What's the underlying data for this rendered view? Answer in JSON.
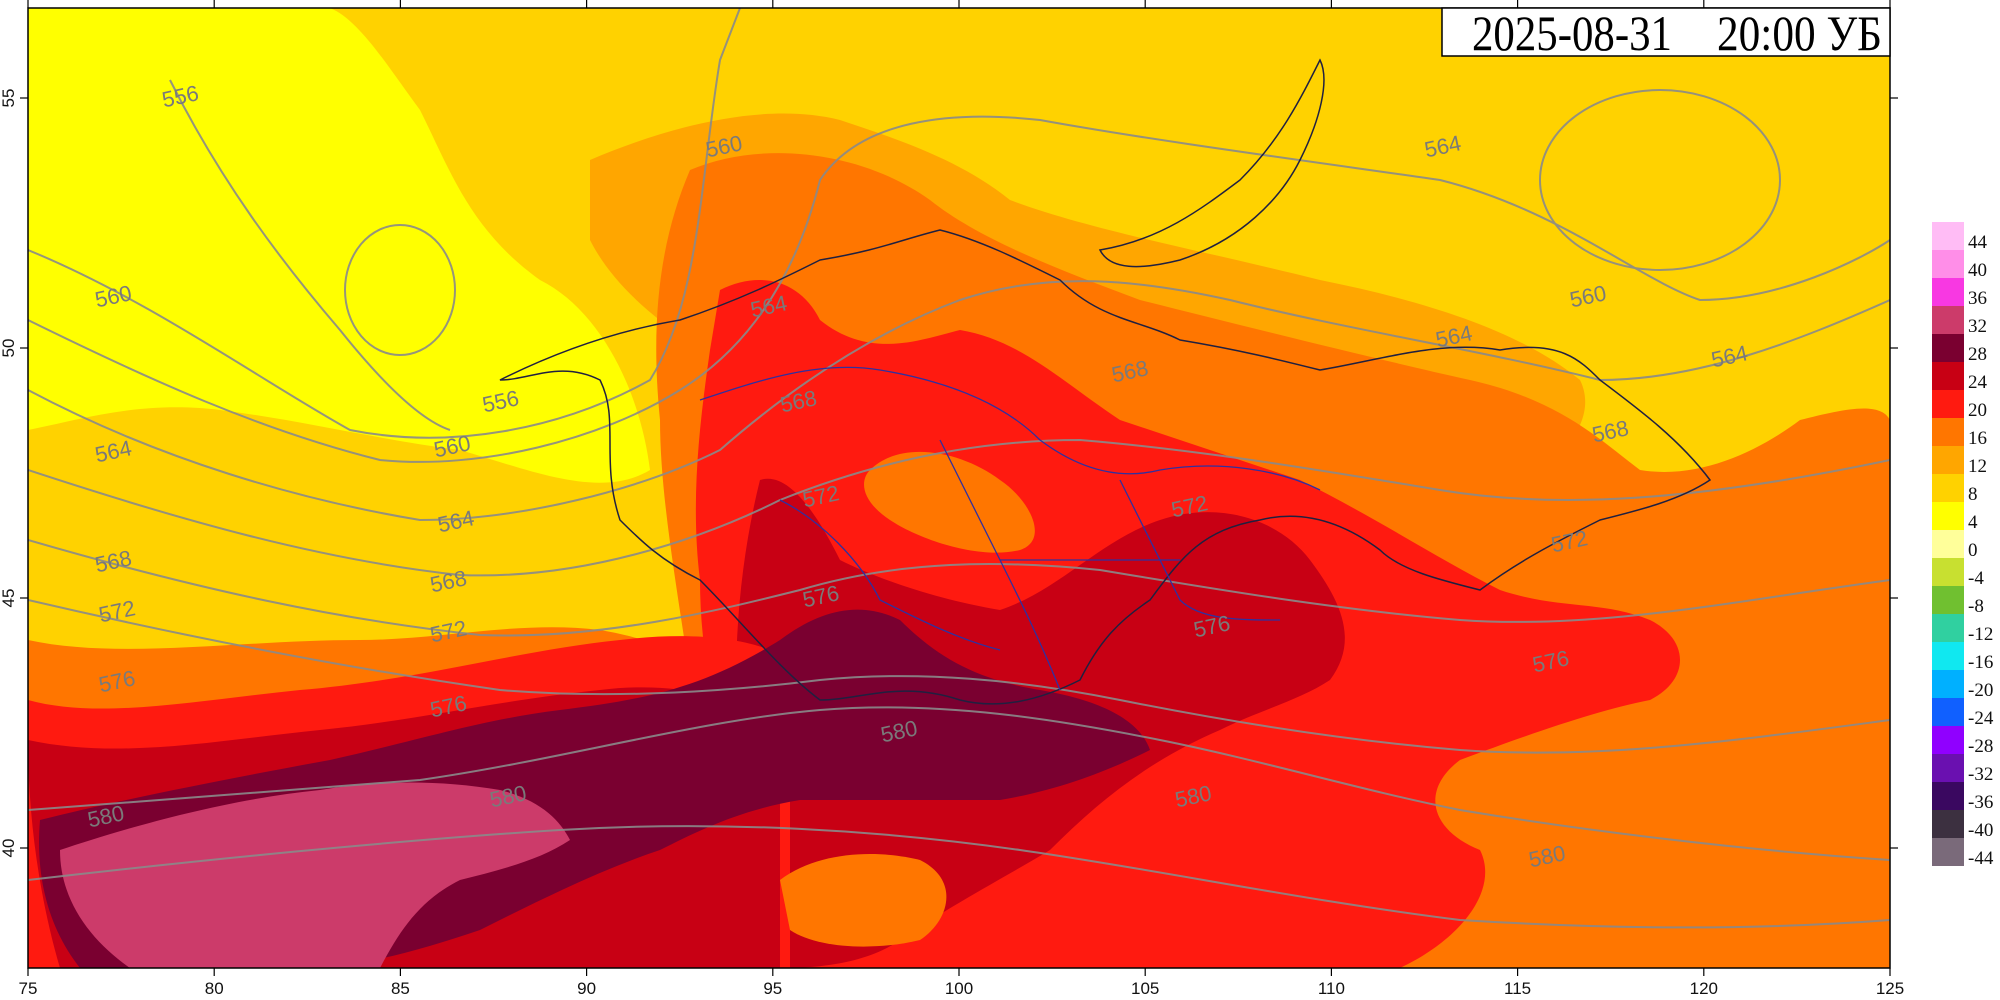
{
  "title": {
    "date": "2025-08-31",
    "time": "20:00 УБ"
  },
  "axes": {
    "x_ticks": [
      "75",
      "80",
      "85",
      "90",
      "95",
      "100",
      "105",
      "110",
      "115",
      "120",
      "125"
    ],
    "y_ticks": [
      "55",
      "50",
      "45",
      "40"
    ],
    "lon_range": [
      75,
      125
    ],
    "lat_range": [
      37.6,
      56.8
    ]
  },
  "contour_labels": [
    {
      "text": "556",
      "lon": 79.1,
      "lat": 55.0
    },
    {
      "text": "556",
      "lon": 87.7,
      "lat": 48.9
    },
    {
      "text": "560",
      "lon": 77.3,
      "lat": 51.0
    },
    {
      "text": "560",
      "lon": 86.4,
      "lat": 48.0
    },
    {
      "text": "560",
      "lon": 93.7,
      "lat": 54.0
    },
    {
      "text": "560",
      "lon": 116.9,
      "lat": 51.0
    },
    {
      "text": "564",
      "lon": 77.3,
      "lat": 47.9
    },
    {
      "text": "564",
      "lon": 86.5,
      "lat": 46.5
    },
    {
      "text": "564",
      "lon": 94.9,
      "lat": 50.8
    },
    {
      "text": "564",
      "lon": 113.0,
      "lat": 54.0
    },
    {
      "text": "564",
      "lon": 113.3,
      "lat": 50.2
    },
    {
      "text": "564",
      "lon": 120.7,
      "lat": 49.8
    },
    {
      "text": "568",
      "lon": 77.3,
      "lat": 45.7
    },
    {
      "text": "568",
      "lon": 86.3,
      "lat": 45.3
    },
    {
      "text": "568",
      "lon": 95.7,
      "lat": 48.9
    },
    {
      "text": "568",
      "lon": 104.6,
      "lat": 49.5
    },
    {
      "text": "568",
      "lon": 117.5,
      "lat": 48.3
    },
    {
      "text": "572",
      "lon": 77.4,
      "lat": 44.7
    },
    {
      "text": "572",
      "lon": 86.3,
      "lat": 44.3
    },
    {
      "text": "572",
      "lon": 96.3,
      "lat": 47.0
    },
    {
      "text": "572",
      "lon": 106.2,
      "lat": 46.8
    },
    {
      "text": "572",
      "lon": 116.4,
      "lat": 46.1
    },
    {
      "text": "576",
      "lon": 77.4,
      "lat": 43.3
    },
    {
      "text": "576",
      "lon": 86.3,
      "lat": 42.8
    },
    {
      "text": "576",
      "lon": 96.3,
      "lat": 45.0
    },
    {
      "text": "576",
      "lon": 106.8,
      "lat": 44.4
    },
    {
      "text": "576",
      "lon": 115.9,
      "lat": 43.7
    },
    {
      "text": "580",
      "lon": 77.1,
      "lat": 40.6
    },
    {
      "text": "580",
      "lon": 87.9,
      "lat": 41.0
    },
    {
      "text": "580",
      "lon": 98.4,
      "lat": 42.3
    },
    {
      "text": "580",
      "lon": 106.3,
      "lat": 41.0
    },
    {
      "text": "580",
      "lon": 115.8,
      "lat": 39.8
    }
  ],
  "legend": {
    "entries": [
      {
        "label": "44",
        "color": "#ffbcf5"
      },
      {
        "label": "40",
        "color": "#ff8ee8"
      },
      {
        "label": "36",
        "color": "#f838e2"
      },
      {
        "label": "32",
        "color": "#cc3b6a"
      },
      {
        "label": "28",
        "color": "#7a0030"
      },
      {
        "label": "24",
        "color": "#c80014"
      },
      {
        "label": "20",
        "color": "#ff1a10"
      },
      {
        "label": "16",
        "color": "#ff7600"
      },
      {
        "label": "12",
        "color": "#ffa600"
      },
      {
        "label": "8",
        "color": "#ffd200"
      },
      {
        "label": "4",
        "color": "#ffff00"
      },
      {
        "label": "0",
        "color": "#ffff9a"
      },
      {
        "label": "-4",
        "color": "#c8e030"
      },
      {
        "label": "-8",
        "color": "#70c030"
      },
      {
        "label": "-12",
        "color": "#30d0a0"
      },
      {
        "label": "-16",
        "color": "#10e8f0"
      },
      {
        "label": "-20",
        "color": "#00b0ff"
      },
      {
        "label": "-24",
        "color": "#1060ff"
      },
      {
        "label": "-28",
        "color": "#9000ff"
      },
      {
        "label": "-32",
        "color": "#6a10b0"
      },
      {
        "label": "-36",
        "color": "#3a0860"
      },
      {
        "label": "-40",
        "color": "#3c3040"
      },
      {
        "label": "-44",
        "color": "#7a6a7a"
      }
    ]
  }
}
